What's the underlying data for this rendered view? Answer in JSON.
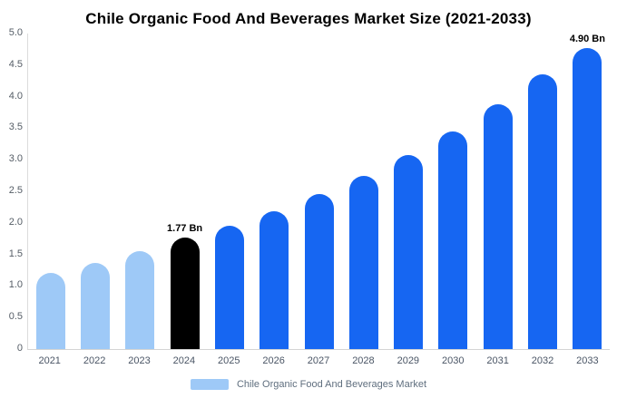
{
  "title": "Chile Organic Food And Beverages Market Size (2021-2033)",
  "legend": {
    "label": "Chile Organic Food And Beverages Market",
    "swatch_color": "#9ec9f7"
  },
  "colors": {
    "historical": "#9ec9f7",
    "base_year": "#000000",
    "forecast": "#1666f2",
    "axis_line": "#dcdcdc"
  },
  "chart_data": {
    "type": "bar",
    "title": "Chile Organic Food And Beverages Market Size (2021-2033)",
    "categories": [
      "2021",
      "2022",
      "2023",
      "2024",
      "2025",
      "2026",
      "2027",
      "2028",
      "2029",
      "2030",
      "2031",
      "2032",
      "2033"
    ],
    "values": [
      1.2,
      1.37,
      1.55,
      1.77,
      1.95,
      2.18,
      2.46,
      2.75,
      3.08,
      3.45,
      3.88,
      4.35,
      4.9
    ],
    "bar_labels": [
      "",
      "",
      "",
      "1.77 Bn",
      "",
      "",
      "",
      "",
      "",
      "",
      "",
      "",
      "4.90 Bn"
    ],
    "bar_colors": [
      "#9ec9f7",
      "#9ec9f7",
      "#9ec9f7",
      "#000000",
      "#1666f2",
      "#1666f2",
      "#1666f2",
      "#1666f2",
      "#1666f2",
      "#1666f2",
      "#1666f2",
      "#1666f2",
      "#1666f2"
    ],
    "xlabel": "",
    "ylabel": "",
    "ylim": [
      0,
      5
    ],
    "yticks": [
      "0",
      "0.5",
      "1.0",
      "1.5",
      "2.0",
      "2.5",
      "3.0",
      "3.5",
      "4.0",
      "4.5",
      "5.0"
    ],
    "grid": false,
    "legend_position": "bottom",
    "units": "Bn"
  }
}
